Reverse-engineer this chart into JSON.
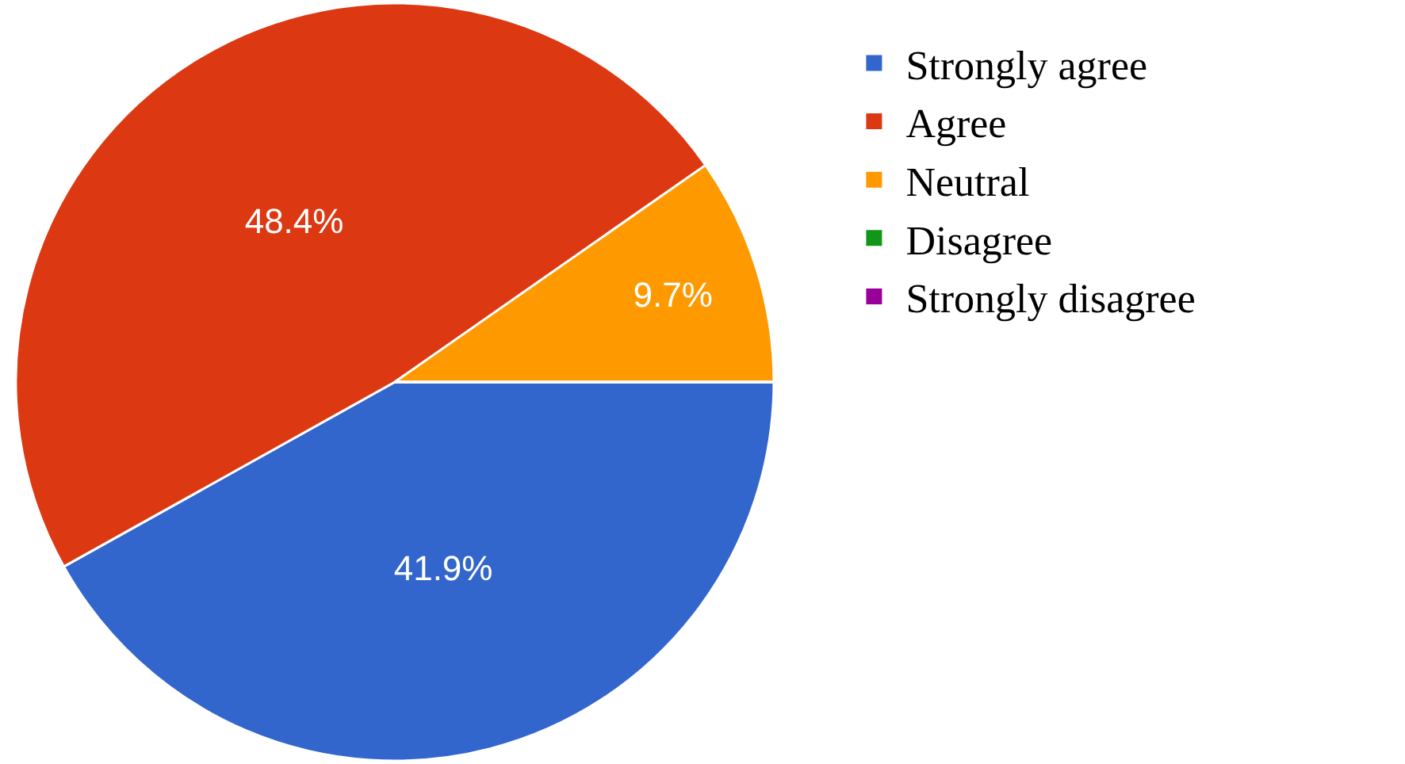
{
  "chart_data": {
    "type": "pie",
    "categories": [
      "Strongly agree",
      "Agree",
      "Neutral",
      "Disagree",
      "Strongly disagree"
    ],
    "values": [
      41.9,
      48.4,
      9.7,
      0,
      0
    ],
    "colors": [
      "#3366cc",
      "#dc3912",
      "#ff9900",
      "#109618",
      "#990099"
    ],
    "value_labels": [
      "41.9%",
      "48.4%",
      "9.7%",
      null,
      null
    ],
    "legend": "right"
  }
}
